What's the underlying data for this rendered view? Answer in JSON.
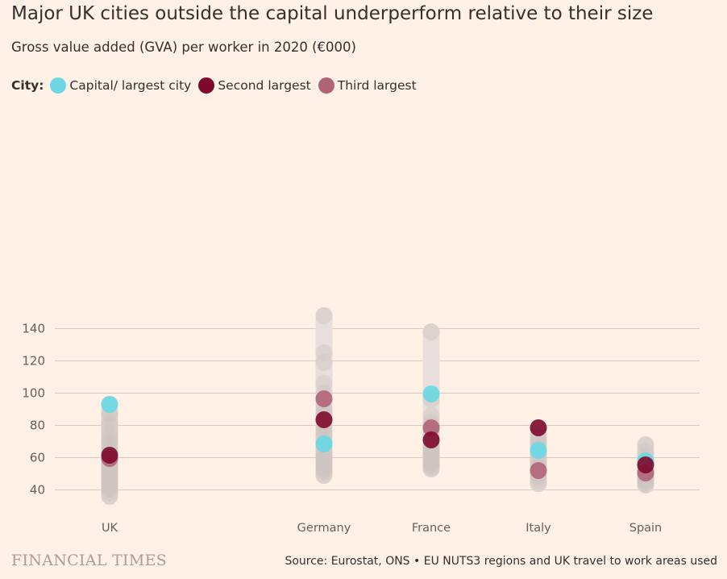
{
  "title": "Major UK cities outside the capital underperform relative to their size",
  "subtitle": "Gross value added (GVA) per worker in 2020 (€000)",
  "legend": {
    "title": "City:",
    "items": [
      {
        "label": "Capital/ largest city",
        "color": "#6dd8e3"
      },
      {
        "label": "Second largest",
        "color": "#7d0a2e"
      },
      {
        "label": "Third largest",
        "color": "#b06478"
      }
    ]
  },
  "colors": {
    "background": "#fff1e5",
    "range_bar": "#e8dedb",
    "other_region_dot": "#cfc5c0",
    "gridline": "#d6ccc4"
  },
  "chart_data": {
    "type": "scatter",
    "ylim": [
      35,
      150
    ],
    "yticks": [
      40,
      60,
      80,
      100,
      120,
      140
    ],
    "grid": true,
    "legend_placement": "top-left",
    "categories": [
      "UK",
      "Germany",
      "France",
      "Italy",
      "Spain"
    ],
    "other_regions": [
      [
        36,
        38,
        40,
        41,
        42,
        43,
        44,
        45,
        46,
        47,
        48,
        49,
        50,
        51,
        52,
        53,
        54,
        55,
        56,
        57,
        58,
        60,
        62,
        64,
        66,
        68,
        70,
        72,
        74,
        76,
        80,
        82,
        86,
        88
      ],
      [
        49,
        51,
        52,
        53,
        54,
        55,
        56,
        57,
        58,
        59,
        60,
        61,
        62,
        64,
        66,
        68,
        70,
        72,
        74,
        76,
        78,
        80,
        82,
        86,
        88,
        90,
        93,
        96,
        100,
        106,
        119,
        125,
        148
      ],
      [
        53,
        54,
        55,
        56,
        57,
        58,
        59,
        60,
        61,
        62,
        63,
        64,
        65,
        66,
        67,
        68,
        70,
        72,
        74,
        76,
        80,
        82,
        86,
        96,
        138
      ],
      [
        44,
        46,
        48,
        50,
        52,
        54,
        56,
        58,
        60,
        62,
        64,
        66,
        68,
        70,
        72,
        74
      ],
      [
        43,
        44,
        45,
        46,
        47,
        48,
        49,
        50,
        51,
        52,
        54,
        56,
        58,
        61,
        64,
        68
      ]
    ],
    "series": [
      {
        "name": "Capital/ largest city",
        "values": [
          93,
          68.5,
          99.5,
          64.5,
          58
        ]
      },
      {
        "name": "Second largest",
        "values": [
          61.5,
          83.5,
          71,
          78.5,
          55.5
        ]
      },
      {
        "name": "Third largest",
        "values": [
          59.5,
          96.5,
          78.5,
          52,
          50.5
        ]
      }
    ]
  },
  "footer": {
    "brand": "FINANCIAL TIMES",
    "source": "Source: Eurostat, ONS • EU NUTS3 regions and UK travel to work areas used"
  }
}
